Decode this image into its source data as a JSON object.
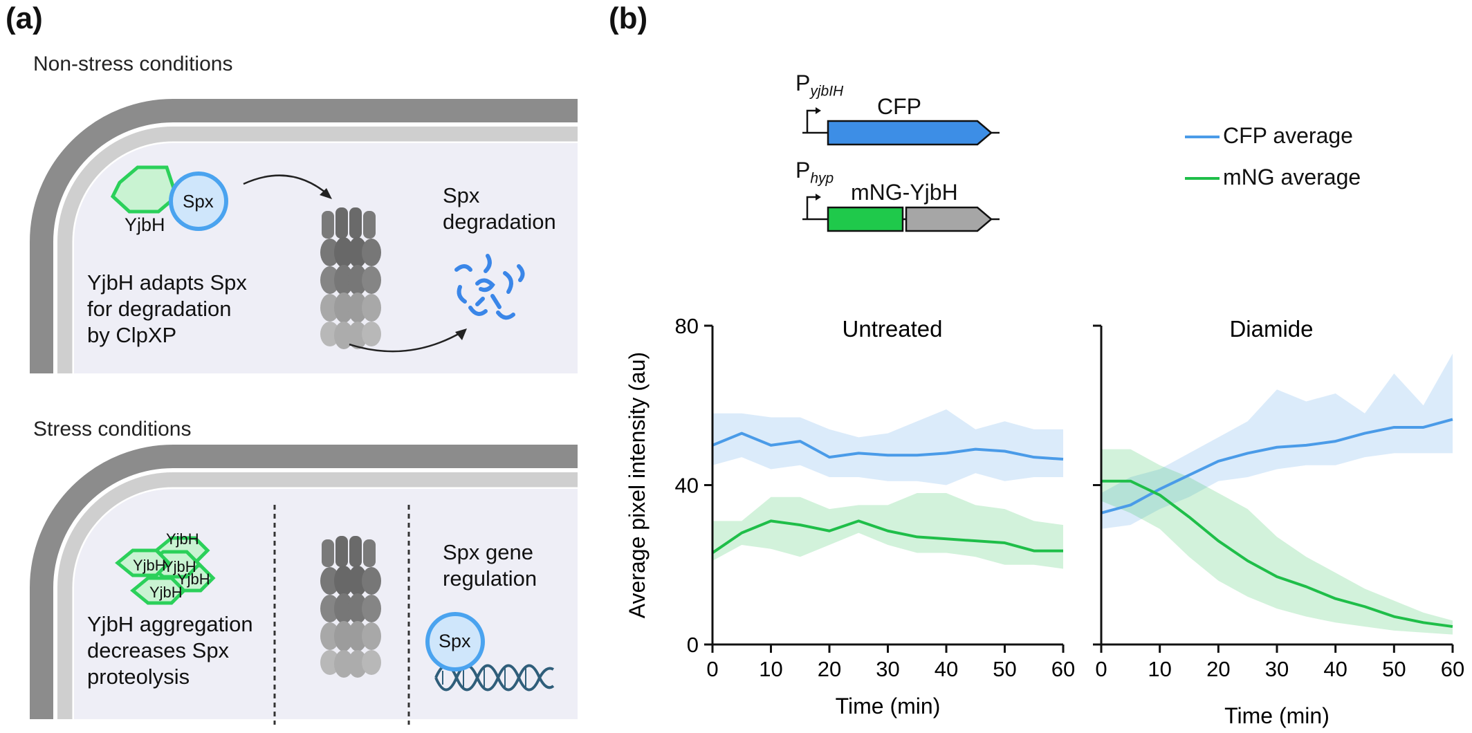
{
  "panel_a": {
    "label": "(a)",
    "non_stress": {
      "title": "Non-stress conditions",
      "spx": "Spx",
      "yjbh": "YjbH",
      "description": [
        "YjbH adapts Spx",
        "for degradation",
        "by ClpXP"
      ],
      "degradation_label": [
        "Spx",
        "degradation"
      ]
    },
    "stress": {
      "title": "Stress conditions",
      "yjbh_labels": [
        "YjbH",
        "YjbH",
        "YjbH",
        "YjbH",
        "YjbH"
      ],
      "description": [
        "YjbH aggregation",
        "decreases Spx",
        "proteolysis"
      ],
      "regulation_label": [
        "Spx gene",
        "regulation"
      ],
      "spx": "Spx"
    }
  },
  "panel_b": {
    "label": "(b)",
    "constructs": [
      {
        "promoter": "P",
        "promoter_sub": "yjbIH",
        "gene": "CFP",
        "color": "#3d8ee6"
      },
      {
        "promoter": "P",
        "promoter_sub": "hyp",
        "gene": "mNG-YjbH",
        "color_a": "#1fc94b",
        "color_b": "#a6a6a6"
      }
    ],
    "legend": [
      {
        "name": "CFP average",
        "color": "#4a9be8"
      },
      {
        "name": "mNG average",
        "color": "#1fbe49"
      }
    ]
  },
  "chart_data": [
    {
      "type": "line",
      "title": "Untreated",
      "xlabel": "Time (min)",
      "ylabel": "Average pixel intensity (au)",
      "xlim": [
        0,
        60
      ],
      "ylim": [
        0,
        80
      ],
      "xticks": [
        0,
        10,
        20,
        30,
        40,
        50,
        60
      ],
      "yticks": [
        0,
        40,
        80
      ],
      "x": [
        0,
        5,
        10,
        15,
        20,
        25,
        30,
        35,
        40,
        45,
        50,
        55,
        60
      ],
      "series": [
        {
          "name": "CFP average",
          "color": "#4a9be8",
          "values": [
            50,
            53,
            50,
            51,
            47,
            48,
            47.5,
            47.5,
            48,
            49,
            48.5,
            47,
            46.5
          ],
          "upper": [
            58,
            58,
            57,
            57,
            54,
            52,
            53,
            56,
            59,
            54,
            56,
            54,
            54
          ],
          "lower": [
            45,
            47,
            44,
            45,
            42,
            42,
            41,
            41,
            40,
            43,
            41,
            42,
            42
          ]
        },
        {
          "name": "mNG average",
          "color": "#1fbe49",
          "values": [
            23,
            28,
            31,
            30,
            28.5,
            31,
            28.5,
            27,
            26.5,
            26,
            25.5,
            23.5,
            23.5
          ],
          "upper": [
            31,
            31,
            37,
            37,
            34,
            35,
            35,
            38,
            38,
            35,
            34,
            31,
            30
          ],
          "lower": [
            21,
            25,
            24,
            22,
            25,
            28,
            25,
            23,
            23,
            22,
            20,
            20,
            19
          ]
        }
      ]
    },
    {
      "type": "line",
      "title": "Diamide",
      "xlabel": "Time (min)",
      "ylabel": "",
      "xlim": [
        0,
        60
      ],
      "ylim": [
        0,
        80
      ],
      "xticks": [
        0,
        10,
        20,
        30,
        40,
        50,
        60
      ],
      "yticks": [
        0,
        40,
        80
      ],
      "x": [
        0,
        5,
        10,
        15,
        20,
        25,
        30,
        35,
        40,
        45,
        50,
        55,
        60
      ],
      "series": [
        {
          "name": "CFP average",
          "color": "#4a9be8",
          "values": [
            33,
            35,
            39,
            42.5,
            46,
            48,
            49.5,
            50,
            51,
            53,
            54.5,
            54.5,
            56.5
          ],
          "upper": [
            38,
            42,
            44,
            48,
            52,
            56,
            64,
            61,
            63,
            58,
            68,
            60,
            73
          ],
          "lower": [
            29,
            30,
            34,
            37,
            41,
            42,
            44,
            45,
            45,
            47,
            48,
            48,
            48
          ]
        },
        {
          "name": "mNG average",
          "color": "#1fbe49",
          "values": [
            41,
            41,
            37.5,
            32,
            26,
            21,
            17,
            14.5,
            11.5,
            9.5,
            7,
            5.5,
            4.5
          ],
          "upper": [
            49,
            49,
            45,
            42,
            38,
            34,
            27,
            22,
            18,
            14,
            11,
            8,
            6
          ],
          "lower": [
            36,
            33,
            29,
            22,
            16,
            12,
            9,
            7,
            5.5,
            4.5,
            3.5,
            3,
            2.5
          ]
        }
      ]
    }
  ]
}
